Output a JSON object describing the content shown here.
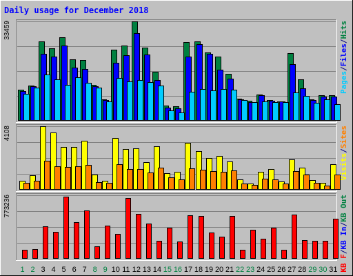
{
  "chart_data": {
    "type": "bar",
    "title": "Daily usage for December 2018",
    "categories": [
      "1",
      "2",
      "3",
      "4",
      "5",
      "6",
      "7",
      "8",
      "9",
      "10",
      "11",
      "12",
      "13",
      "14",
      "15",
      "16",
      "17",
      "18",
      "19",
      "20",
      "21",
      "22",
      "23",
      "24",
      "25",
      "26",
      "27",
      "28",
      "29",
      "30",
      "31"
    ],
    "weekend_days": [
      1,
      2,
      8,
      9,
      15,
      16,
      22,
      23,
      29,
      30
    ],
    "panels": [
      {
        "id": "top",
        "max_label": "33459",
        "ymax": 33459,
        "legend": [
          {
            "text": "Pages",
            "color": "#00ccff"
          },
          {
            "text": "/",
            "color": "#000080"
          },
          {
            "text": "Files",
            "color": "#0000ff"
          },
          {
            "text": "/",
            "color": "#000080"
          },
          {
            "text": "Hits",
            "color": "#008040"
          }
        ],
        "series": [
          {
            "name": "Hits",
            "color": "#008040",
            "values": [
              10400,
              11900,
              26800,
              24300,
              28100,
              20700,
              20500,
              12000,
              7200,
              24000,
              25300,
              33459,
              24700,
              16500,
              5100,
              4900,
              26600,
              26800,
              23000,
              21500,
              15800,
              7400,
              6700,
              8900,
              7000,
              6600,
              22700,
              14000,
              7200,
              8600,
              8600
            ]
          },
          {
            "name": "Files",
            "color": "#0000ff",
            "values": [
              10100,
              11600,
              22600,
              21600,
              25400,
              17800,
              17500,
              11700,
              7000,
              19500,
              22000,
              29600,
              22300,
              13800,
              4400,
              4100,
              21700,
              25800,
              22600,
              17200,
              14200,
              7200,
              6300,
              8600,
              6700,
              6400,
              19000,
              10900,
              6900,
              8100,
              8200
            ]
          },
          {
            "name": "Pages",
            "color": "#00ccff",
            "values": [
              9000,
              11200,
              15600,
              14000,
              12100,
              14700,
              12700,
              11100,
              6500,
              14300,
              13300,
              13800,
              13000,
              11900,
              3600,
              2700,
              9800,
              10700,
              10300,
              10700,
              10400,
              6900,
              6200,
              6500,
              6300,
              6300,
              9600,
              8300,
              6000,
              7200,
              5500
            ]
          }
        ]
      },
      {
        "id": "middle",
        "max_label": "4108",
        "ymax": 4108,
        "legend": [
          {
            "text": "Visits",
            "color": "#ffff00"
          },
          {
            "text": "/",
            "color": "#000080"
          },
          {
            "text": "Sites",
            "color": "#ff8000"
          }
        ],
        "series": [
          {
            "name": "Visits",
            "color": "#ffff00",
            "values": [
              580,
              940,
              4108,
              3700,
              2780,
              2760,
              3160,
              970,
              570,
              3370,
              2630,
              2660,
              1800,
              2800,
              1080,
              1180,
              3030,
              2520,
              2040,
              2190,
              1810,
              680,
              410,
              1150,
              1320,
              530,
              1980,
              1440,
              630,
              430,
              1640
            ]
          },
          {
            "name": "Sites",
            "color": "#ff8000",
            "values": [
              430,
              560,
              1860,
              1510,
              1460,
              1510,
              1620,
              500,
              460,
              1640,
              1320,
              1330,
              1120,
              1450,
              800,
              650,
              1390,
              1280,
              1210,
              1160,
              1230,
              410,
              320,
              710,
              680,
              420,
              1190,
              1000,
              430,
              280,
              1000
            ]
          }
        ]
      },
      {
        "id": "bottom",
        "max_label": "773236",
        "ymax": 773236,
        "legend": [
          {
            "text": "KB F",
            "color": "#ff0000"
          },
          {
            "text": "/",
            "color": "#000080"
          },
          {
            "text": "KB In",
            "color": "#0000ff"
          },
          {
            "text": "/",
            "color": "#000080"
          },
          {
            "text": "KB Out",
            "color": "#008040"
          }
        ],
        "series": [
          {
            "name": "KB F",
            "color": "#ff0000",
            "values": [
              110000,
              115000,
              395000,
              328000,
              757000,
              445000,
              590000,
              154000,
              400000,
              300000,
              743000,
              550000,
              425000,
              222000,
              382000,
              208000,
              533000,
              519000,
              317000,
              270000,
              522000,
              112000,
              350000,
              240000,
              380000,
              107000,
              535000,
              224000,
              215000,
              220000,
              485000
            ]
          }
        ]
      }
    ]
  }
}
